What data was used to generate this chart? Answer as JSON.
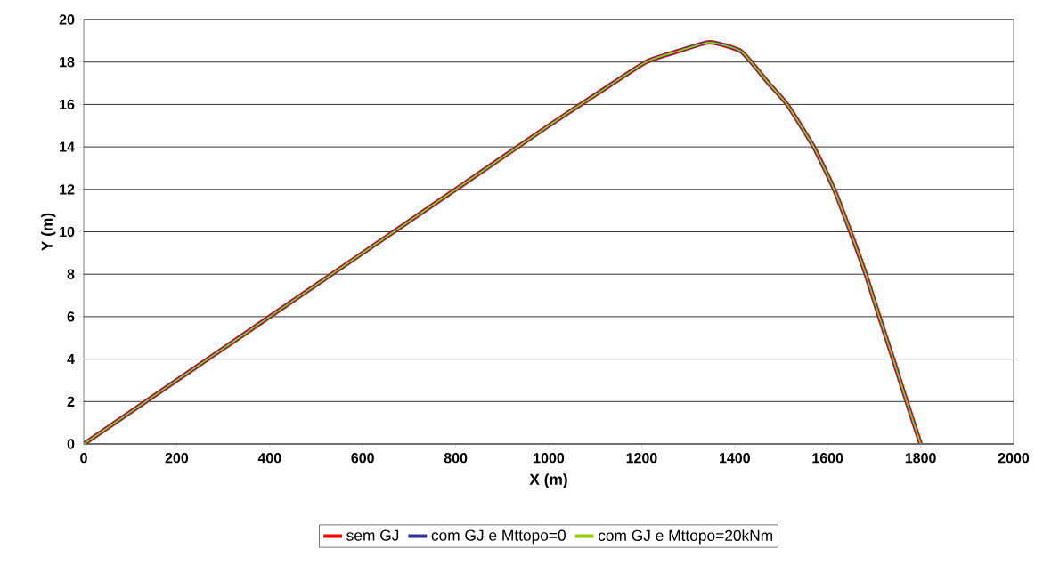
{
  "chart_data": {
    "type": "line",
    "xlabel": "X (m)",
    "ylabel": "Y (m)",
    "x": [
      0,
      400,
      800,
      1000,
      1100,
      1209,
      1277,
      1346,
      1414,
      1473,
      1513,
      1570,
      1614,
      1649,
      1682,
      1711,
      1741,
      1770,
      1800
    ],
    "series": [
      {
        "name": "sem GJ",
        "color": "#ff0000",
        "values": [
          0,
          6,
          12,
          15,
          16.45,
          18,
          18.5,
          18.93,
          18.5,
          17,
          16,
          14,
          12,
          10,
          8,
          6,
          4,
          2,
          0
        ]
      },
      {
        "name": "com GJ e Mttopo=0",
        "color": "#333399",
        "values": [
          0,
          6,
          12,
          15,
          16.45,
          18,
          18.5,
          18.93,
          18.5,
          17,
          16,
          14,
          12,
          10,
          8,
          6,
          4,
          2,
          0
        ]
      },
      {
        "name": "com GJ e Mttopo=20kNm",
        "color": "#99cc00",
        "values": [
          0,
          6,
          12,
          15,
          16.45,
          18,
          18.5,
          18.93,
          18.5,
          17,
          16,
          14,
          12,
          10,
          8,
          6,
          4,
          2,
          0
        ]
      }
    ],
    "xlim": [
      0,
      2000
    ],
    "ylim": [
      0,
      20
    ],
    "xticks": [
      0,
      200,
      400,
      600,
      800,
      1000,
      1200,
      1400,
      1600,
      1800,
      2000
    ],
    "yticks": [
      0,
      2,
      4,
      6,
      8,
      10,
      12,
      14,
      16,
      18,
      20
    ],
    "grid": "y",
    "legend": "bottom",
    "marker": "none",
    "line_style": "solid"
  }
}
